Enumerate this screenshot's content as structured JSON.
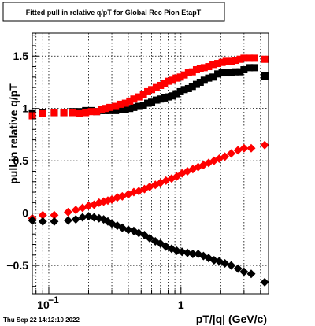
{
  "chart_data": {
    "type": "scatter",
    "title": "Fitted pull in relative q/pT for Global Rec Pion EtapT",
    "xlabel": "pT/|q| (GeV/c)",
    "ylabel": "pull in relative q/pT",
    "x_scale": "log",
    "xlim": [
      0.075,
      4.6
    ],
    "ylim": [
      -0.77,
      1.72
    ],
    "x_ticks": [
      {
        "value": 0.1,
        "base": "10",
        "exp": "−1"
      },
      {
        "value": 1,
        "label": "1"
      }
    ],
    "y_ticks": [
      {
        "value": -0.5,
        "label": "−0.5"
      },
      {
        "value": 0,
        "label": "0"
      },
      {
        "value": 0.5,
        "label": "0.5"
      },
      {
        "value": 1,
        "label": "1"
      },
      {
        "value": 1.5,
        "label": "1.5"
      }
    ],
    "grid": true,
    "timestamp": "Thu Sep 22 14:12:10 2022",
    "colors": {
      "black_series": "#000000",
      "red_series": "#ff0000"
    },
    "series": [
      {
        "marker": "square",
        "color": "#000000",
        "x": [
          0.075,
          0.09,
          0.11,
          0.13,
          0.15,
          0.17,
          0.19,
          0.21,
          0.23,
          0.25,
          0.27,
          0.29,
          0.32,
          0.35,
          0.38,
          0.41,
          0.44,
          0.48,
          0.52,
          0.56,
          0.6,
          0.65,
          0.7,
          0.75,
          0.8,
          0.86,
          0.92,
          0.99,
          1.06,
          1.14,
          1.22,
          1.31,
          1.4,
          1.5,
          1.62,
          1.75,
          1.9,
          2.05,
          2.2,
          2.4,
          2.6,
          2.8,
          3.0,
          3.3,
          3.6,
          4.3
        ],
        "y": [
          0.95,
          0.96,
          0.96,
          0.96,
          0.97,
          0.97,
          0.98,
          0.98,
          0.97,
          0.98,
          0.98,
          0.98,
          0.98,
          0.99,
          0.99,
          1.0,
          1.01,
          1.02,
          1.03,
          1.05,
          1.06,
          1.08,
          1.09,
          1.1,
          1.11,
          1.12,
          1.14,
          1.16,
          1.18,
          1.19,
          1.21,
          1.23,
          1.25,
          1.27,
          1.29,
          1.3,
          1.33,
          1.34,
          1.34,
          1.34,
          1.35,
          1.35,
          1.37,
          1.39,
          1.39,
          1.31
        ]
      },
      {
        "marker": "square",
        "color": "#ff0000",
        "x": [
          0.075,
          0.09,
          0.11,
          0.13,
          0.15,
          0.17,
          0.19,
          0.21,
          0.23,
          0.25,
          0.27,
          0.29,
          0.32,
          0.35,
          0.38,
          0.41,
          0.44,
          0.48,
          0.52,
          0.56,
          0.6,
          0.65,
          0.7,
          0.75,
          0.8,
          0.86,
          0.92,
          0.99,
          1.06,
          1.14,
          1.22,
          1.31,
          1.4,
          1.5,
          1.62,
          1.75,
          1.9,
          2.05,
          2.2,
          2.4,
          2.6,
          2.8,
          3.0,
          3.3,
          3.6,
          4.3
        ],
        "y": [
          0.93,
          0.95,
          0.96,
          0.96,
          0.96,
          0.95,
          0.96,
          0.97,
          0.97,
          0.99,
          1.0,
          1.01,
          1.02,
          1.04,
          1.05,
          1.07,
          1.09,
          1.11,
          1.13,
          1.16,
          1.18,
          1.2,
          1.22,
          1.24,
          1.26,
          1.27,
          1.29,
          1.3,
          1.32,
          1.34,
          1.35,
          1.37,
          1.38,
          1.39,
          1.4,
          1.42,
          1.43,
          1.44,
          1.45,
          1.45,
          1.46,
          1.47,
          1.48,
          1.48,
          1.48,
          1.47
        ]
      },
      {
        "marker": "diamond",
        "color": "#ff0000",
        "x": [
          0.075,
          0.09,
          0.11,
          0.14,
          0.16,
          0.18,
          0.2,
          0.22,
          0.24,
          0.26,
          0.28,
          0.3,
          0.33,
          0.36,
          0.4,
          0.44,
          0.48,
          0.53,
          0.58,
          0.64,
          0.7,
          0.77,
          0.85,
          0.93,
          1.02,
          1.12,
          1.23,
          1.35,
          1.48,
          1.62,
          1.78,
          1.95,
          2.15,
          2.4,
          2.7,
          3.0,
          3.4,
          4.3
        ],
        "y": [
          -0.05,
          -0.02,
          -0.02,
          0.01,
          0.03,
          0.05,
          0.07,
          0.08,
          0.1,
          0.11,
          0.12,
          0.13,
          0.15,
          0.16,
          0.18,
          0.2,
          0.21,
          0.23,
          0.25,
          0.27,
          0.29,
          0.31,
          0.33,
          0.35,
          0.38,
          0.4,
          0.42,
          0.44,
          0.46,
          0.48,
          0.5,
          0.52,
          0.54,
          0.57,
          0.6,
          0.62,
          0.62,
          0.65
        ]
      },
      {
        "marker": "diamond",
        "color": "#000000",
        "x": [
          0.075,
          0.09,
          0.11,
          0.14,
          0.16,
          0.18,
          0.2,
          0.22,
          0.24,
          0.26,
          0.28,
          0.3,
          0.33,
          0.36,
          0.4,
          0.44,
          0.48,
          0.53,
          0.58,
          0.64,
          0.7,
          0.77,
          0.85,
          0.93,
          1.02,
          1.12,
          1.23,
          1.35,
          1.48,
          1.62,
          1.78,
          1.95,
          2.15,
          2.4,
          2.7,
          3.0,
          3.4,
          4.3
        ],
        "y": [
          -0.07,
          -0.08,
          -0.08,
          -0.07,
          -0.06,
          -0.04,
          -0.03,
          -0.04,
          -0.05,
          -0.06,
          -0.08,
          -0.1,
          -0.12,
          -0.14,
          -0.16,
          -0.17,
          -0.19,
          -0.21,
          -0.24,
          -0.27,
          -0.29,
          -0.32,
          -0.34,
          -0.36,
          -0.37,
          -0.38,
          -0.39,
          -0.39,
          -0.41,
          -0.43,
          -0.45,
          -0.46,
          -0.48,
          -0.5,
          -0.53,
          -0.56,
          -0.58,
          -0.66
        ]
      }
    ]
  }
}
